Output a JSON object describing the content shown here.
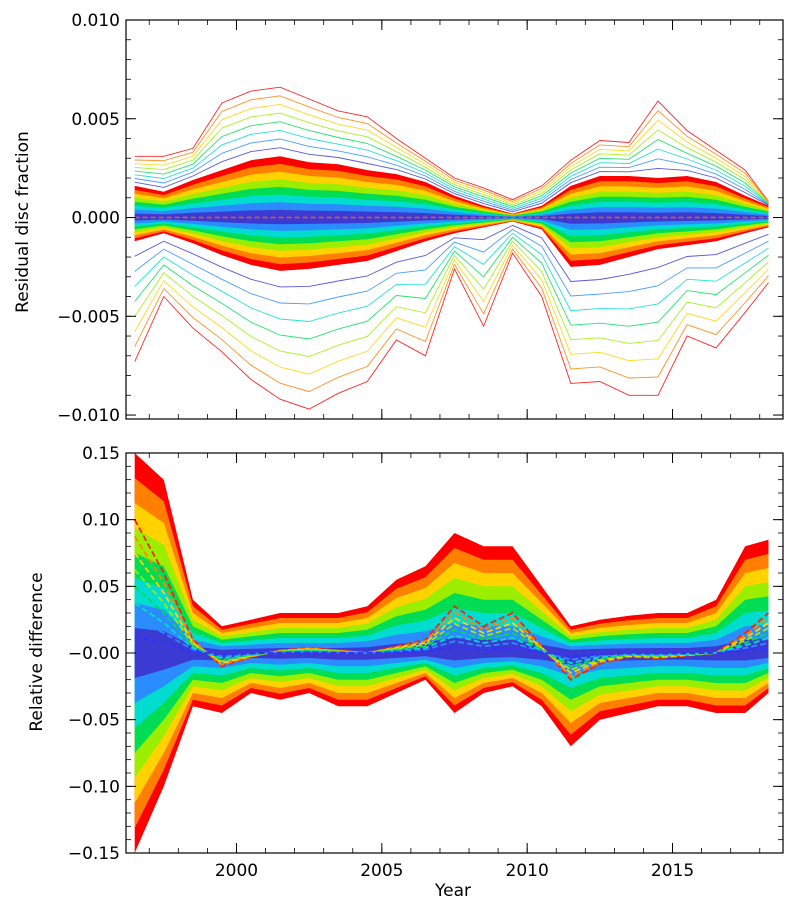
{
  "chart_data": [
    {
      "type": "line",
      "ylabel": "Residual disc fraction",
      "xlabel": "",
      "xlim": [
        1996.2,
        2018.8
      ],
      "ylim": [
        -0.0102,
        0.01
      ],
      "yticks": [
        -0.01,
        -0.005,
        0.0,
        0.005,
        0.01
      ],
      "ytick_labels": [
        "−0.010",
        "−0.005",
        "0.000",
        "0.005",
        "0.010"
      ],
      "xticks": [
        2000,
        2005,
        2010,
        2015
      ],
      "xtick_labels": [
        "",
        "",
        "",
        ""
      ],
      "grid": false,
      "legend": "none",
      "colors": [
        "#ff0000",
        "#ff7f00",
        "#ffd200",
        "#9bee00",
        "#00dd55",
        "#00dccf",
        "#2b8cff",
        "#3b3bd4"
      ],
      "x": [
        1996.5,
        1997.5,
        1998.5,
        1999.5,
        2000.5,
        2001.5,
        2002.5,
        2003.5,
        2004.5,
        2005.5,
        2006.5,
        2007.5,
        2008.5,
        2009.5,
        2010.5,
        2011.5,
        2012.5,
        2013.5,
        2014.5,
        2015.5,
        2016.5,
        2017.5,
        2018.3
      ],
      "band_upper_envelope": [
        0.0016,
        0.0013,
        0.0019,
        0.0024,
        0.0029,
        0.0031,
        0.0028,
        0.0027,
        0.0024,
        0.0022,
        0.0018,
        0.0011,
        0.0006,
        0.0002,
        0.0006,
        0.0016,
        0.0021,
        0.0021,
        0.002,
        0.0021,
        0.0018,
        0.0011,
        0.0006
      ],
      "band_lower_envelope": [
        -0.0012,
        -0.0008,
        -0.0013,
        -0.0019,
        -0.0024,
        -0.0027,
        -0.0026,
        -0.0024,
        -0.0022,
        -0.0017,
        -0.0012,
        -0.0008,
        -0.0005,
        -0.0002,
        -0.0006,
        -0.0025,
        -0.0024,
        -0.002,
        -0.0016,
        -0.0014,
        -0.0012,
        -0.0008,
        -0.0005
      ],
      "outer_upper_line": [
        0.0031,
        0.0031,
        0.0035,
        0.0058,
        0.0064,
        0.0066,
        0.006,
        0.0054,
        0.0051,
        0.004,
        0.003,
        0.002,
        0.0015,
        0.0009,
        0.0016,
        0.0029,
        0.0039,
        0.0038,
        0.0059,
        0.0044,
        0.0034,
        0.0024,
        0.0008
      ],
      "outer_lower_line": [
        -0.0073,
        -0.004,
        -0.0056,
        -0.0068,
        -0.0082,
        -0.0092,
        -0.0097,
        -0.0089,
        -0.0083,
        -0.0062,
        -0.007,
        -0.0026,
        -0.0055,
        -0.0018,
        -0.004,
        -0.0084,
        -0.0083,
        -0.009,
        -0.009,
        -0.006,
        -0.0066,
        -0.0048,
        -0.0033
      ]
    },
    {
      "type": "line",
      "ylabel": "Relative difference",
      "xlabel": "Year",
      "xlim": [
        1996.2,
        2018.8
      ],
      "ylim": [
        -0.15,
        0.15
      ],
      "yticks": [
        -0.15,
        -0.1,
        -0.05,
        0.0,
        0.05,
        0.1,
        0.15
      ],
      "ytick_labels": [
        "−0.15",
        "−0.10",
        "−0.05",
        "−0.00",
        "0.05",
        "0.10",
        "0.15"
      ],
      "xticks": [
        2000,
        2005,
        2010,
        2015
      ],
      "xtick_labels": [
        "2000",
        "2005",
        "2010",
        "2015"
      ],
      "grid": false,
      "legend": "none",
      "colors": [
        "#ff0000",
        "#ff7f00",
        "#ffd200",
        "#9bee00",
        "#00dd55",
        "#00dccf",
        "#2b8cff",
        "#3b3bd4"
      ],
      "x": [
        1996.5,
        1997.5,
        1998.5,
        1999.5,
        2000.5,
        2001.5,
        2002.5,
        2003.5,
        2004.5,
        2005.5,
        2006.5,
        2007.5,
        2008.5,
        2009.5,
        2010.5,
        2011.5,
        2012.5,
        2013.5,
        2014.5,
        2015.5,
        2016.5,
        2017.5,
        2018.3
      ],
      "band_upper_envelope": [
        0.15,
        0.13,
        0.04,
        0.02,
        0.025,
        0.03,
        0.03,
        0.03,
        0.035,
        0.055,
        0.065,
        0.09,
        0.08,
        0.08,
        0.05,
        0.02,
        0.025,
        0.028,
        0.03,
        0.03,
        0.04,
        0.08,
        0.085
      ],
      "band_lower_envelope": [
        -0.15,
        -0.1,
        -0.04,
        -0.045,
        -0.03,
        -0.035,
        -0.03,
        -0.04,
        -0.04,
        -0.03,
        -0.02,
        -0.045,
        -0.03,
        -0.025,
        -0.04,
        -0.07,
        -0.05,
        -0.045,
        -0.04,
        -0.04,
        -0.045,
        -0.045,
        -0.03
      ],
      "dashed_series_example": [
        0.1,
        0.06,
        0.01,
        -0.01,
        -0.003,
        0.002,
        0.004,
        0.002,
        0.0,
        0.005,
        0.01,
        0.035,
        0.02,
        0.03,
        0.005,
        -0.02,
        -0.008,
        -0.003,
        -0.004,
        -0.002,
        0.0,
        0.015,
        0.03
      ]
    }
  ]
}
